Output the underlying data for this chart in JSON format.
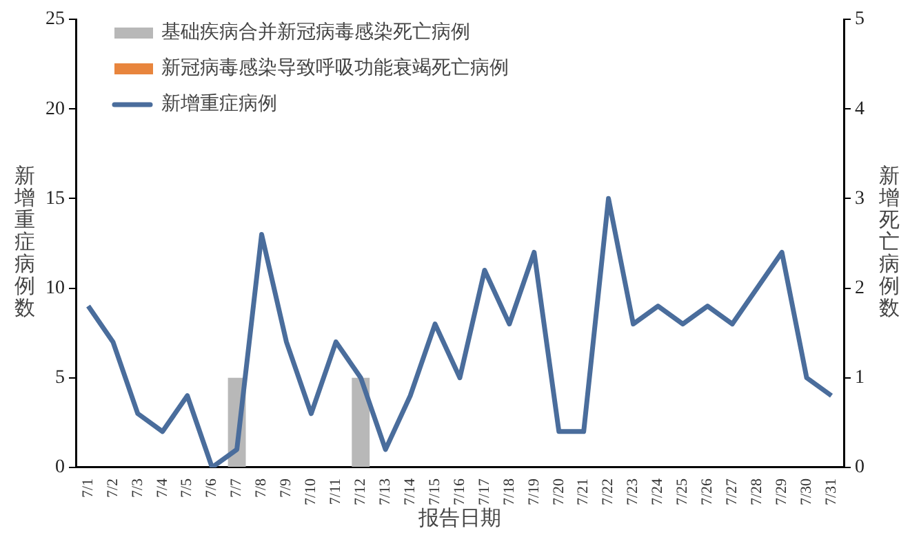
{
  "chart_data": {
    "type": "bar",
    "xlabel": "报告日期",
    "ylabel": "新增重症病例数",
    "y2label": "新增死亡病例数",
    "categories": [
      "7/1",
      "7/2",
      "7/3",
      "7/4",
      "7/5",
      "7/6",
      "7/7",
      "7/8",
      "7/9",
      "7/10",
      "7/11",
      "7/12",
      "7/13",
      "7/14",
      "7/15",
      "7/16",
      "7/17",
      "7/18",
      "7/19",
      "7/20",
      "7/21",
      "7/22",
      "7/23",
      "7/24",
      "7/25",
      "7/26",
      "7/27",
      "7/28",
      "7/29",
      "7/30",
      "7/31"
    ],
    "series": [
      {
        "name": "基础疾病合并新冠病毒感染死亡病例",
        "axis": "y2",
        "color": "#b8b8b8",
        "values": [
          null,
          null,
          null,
          null,
          null,
          null,
          1,
          null,
          null,
          null,
          null,
          1,
          null,
          null,
          null,
          null,
          null,
          null,
          null,
          null,
          null,
          null,
          null,
          null,
          null,
          null,
          null,
          null,
          null,
          null,
          null
        ]
      },
      {
        "name": "新冠病毒感染导致呼吸功能衰竭死亡病例",
        "axis": "y2",
        "color": "#e8853d",
        "values": [
          null,
          null,
          null,
          null,
          null,
          null,
          null,
          null,
          null,
          null,
          null,
          null,
          null,
          null,
          null,
          null,
          null,
          null,
          null,
          null,
          null,
          null,
          null,
          null,
          null,
          null,
          null,
          null,
          null,
          null,
          null
        ]
      },
      {
        "name": "新增重症病例",
        "type": "line",
        "color": "#4a6d9c",
        "values": [
          9,
          7,
          3,
          2,
          4,
          0,
          1,
          13,
          7,
          3,
          7,
          5,
          1,
          4,
          8,
          5,
          11,
          8,
          12,
          2,
          2,
          15,
          8,
          9,
          8,
          9,
          8,
          10,
          12,
          5,
          4
        ]
      }
    ],
    "ylim": [
      0,
      25
    ],
    "yticks": [
      0,
      5,
      10,
      15,
      20,
      25
    ],
    "y2lim": [
      0,
      5
    ],
    "y2ticks": [
      0,
      1,
      2,
      3,
      4,
      5
    ],
    "grid": false,
    "legend": "top left",
    "marker": "none",
    "line_style": "solid"
  }
}
